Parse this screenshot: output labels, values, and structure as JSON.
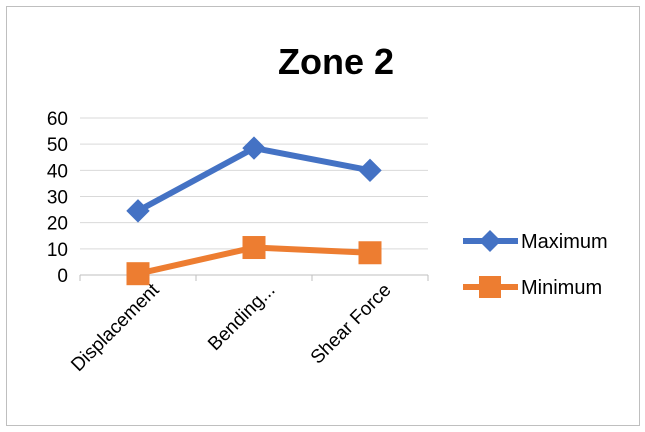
{
  "chart_data": {
    "type": "line",
    "title": "Zone 2",
    "categories": [
      "Displacement",
      "Bending...",
      "Shear Force"
    ],
    "ylim": [
      0,
      60
    ],
    "yticks": [
      0,
      10,
      20,
      30,
      40,
      50,
      60
    ],
    "grid": true,
    "legend_position": "right",
    "series": [
      {
        "name": "Maximum",
        "values": [
          24.5,
          48.5,
          40
        ],
        "color": "#4472C4",
        "marker": "diamond"
      },
      {
        "name": "Minimum",
        "values": [
          0.5,
          10.5,
          8.5
        ],
        "color": "#ED7D31",
        "marker": "square"
      }
    ]
  }
}
